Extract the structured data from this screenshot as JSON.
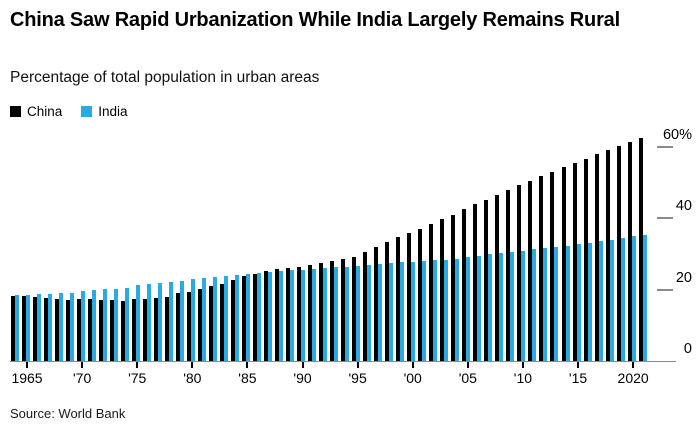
{
  "header": {
    "title": "China Saw Rapid Urbanization While India Largely Remains Rural",
    "subtitle": "Percentage of total population in urban areas"
  },
  "legend": {
    "items": [
      {
        "label": "China",
        "color": "#000000"
      },
      {
        "label": "India",
        "color": "#2BA9E2"
      }
    ]
  },
  "source": "Source: World Bank",
  "colors": {
    "china": "#000000",
    "india": "#2BA9E2",
    "axis": "#8a8a8a",
    "tick": "#000000",
    "text": "#000000",
    "background": "#ffffff"
  },
  "chart_data": {
    "type": "bar",
    "title": "China Saw Rapid Urbanization While India Largely Remains Rural",
    "subtitle": "Percentage of total population in urban areas",
    "xlabel": "",
    "ylabel": "Percentage of total population in urban areas",
    "ylim": [
      0,
      63
    ],
    "grid": "off",
    "axis_side": "right",
    "legend_position": "top-left",
    "x": [
      1964,
      1965,
      1966,
      1967,
      1968,
      1969,
      1970,
      1971,
      1972,
      1973,
      1974,
      1975,
      1976,
      1977,
      1978,
      1979,
      1980,
      1981,
      1982,
      1983,
      1984,
      1985,
      1986,
      1987,
      1988,
      1989,
      1990,
      1991,
      1992,
      1993,
      1994,
      1995,
      1996,
      1997,
      1998,
      1999,
      2000,
      2001,
      2002,
      2003,
      2004,
      2005,
      2006,
      2007,
      2008,
      2009,
      2010,
      2011,
      2012,
      2013,
      2014,
      2015,
      2016,
      2017,
      2018,
      2019,
      2020,
      2021
    ],
    "series": [
      {
        "name": "China",
        "color": "#000000",
        "values": [
          18.1,
          18.09,
          17.86,
          17.64,
          17.42,
          17.2,
          17.4,
          17.26,
          17.12,
          16.98,
          16.85,
          17.34,
          17.44,
          17.55,
          17.92,
          18.96,
          19.36,
          20.16,
          21.13,
          21.62,
          22.63,
          23.71,
          24.52,
          25.32,
          25.81,
          26.21,
          26.44,
          26.94,
          27.46,
          27.99,
          28.51,
          29.04,
          30.48,
          31.91,
          33.35,
          34.78,
          35.88,
          37.09,
          38.43,
          39.78,
          41.06,
          42.52,
          43.9,
          45.2,
          46.54,
          47.88,
          49.23,
          50.51,
          51.78,
          53.01,
          54.26,
          55.5,
          56.74,
          57.96,
          59.15,
          60.31,
          61.43,
          62.51
        ]
      },
      {
        "name": "India",
        "color": "#2BA9E2",
        "values": [
          18.46,
          18.61,
          18.76,
          18.9,
          19.05,
          19.2,
          19.76,
          19.91,
          20.06,
          20.21,
          20.37,
          21.33,
          21.59,
          21.85,
          22.12,
          22.38,
          23.1,
          23.34,
          23.58,
          23.82,
          24.07,
          24.35,
          24.63,
          24.91,
          25.2,
          25.49,
          25.55,
          25.78,
          26.01,
          26.25,
          26.48,
          26.61,
          26.87,
          27.14,
          27.41,
          27.68,
          27.67,
          27.92,
          28.18,
          28.44,
          28.7,
          29.24,
          29.57,
          29.91,
          30.24,
          30.58,
          30.93,
          31.28,
          31.63,
          31.99,
          32.36,
          32.78,
          33.18,
          33.6,
          34.03,
          34.47,
          34.93,
          35.39
        ]
      }
    ],
    "x_ticks": [
      {
        "year": 1965,
        "label": "1965"
      },
      {
        "year": 1970,
        "label": "'70"
      },
      {
        "year": 1975,
        "label": "'75"
      },
      {
        "year": 1980,
        "label": "'80"
      },
      {
        "year": 1985,
        "label": "'85"
      },
      {
        "year": 1990,
        "label": "'90"
      },
      {
        "year": 1995,
        "label": "'95"
      },
      {
        "year": 2000,
        "label": "'00"
      },
      {
        "year": 2005,
        "label": "'05"
      },
      {
        "year": 2010,
        "label": "'10"
      },
      {
        "year": 2015,
        "label": "'15"
      },
      {
        "year": 2020,
        "label": "2020"
      }
    ],
    "y_ticks": [
      {
        "value": 0,
        "label": "0"
      },
      {
        "value": 20,
        "label": "20"
      },
      {
        "value": 40,
        "label": "40"
      },
      {
        "value": 60,
        "label": "60%"
      }
    ],
    "source": "Source: World Bank"
  }
}
